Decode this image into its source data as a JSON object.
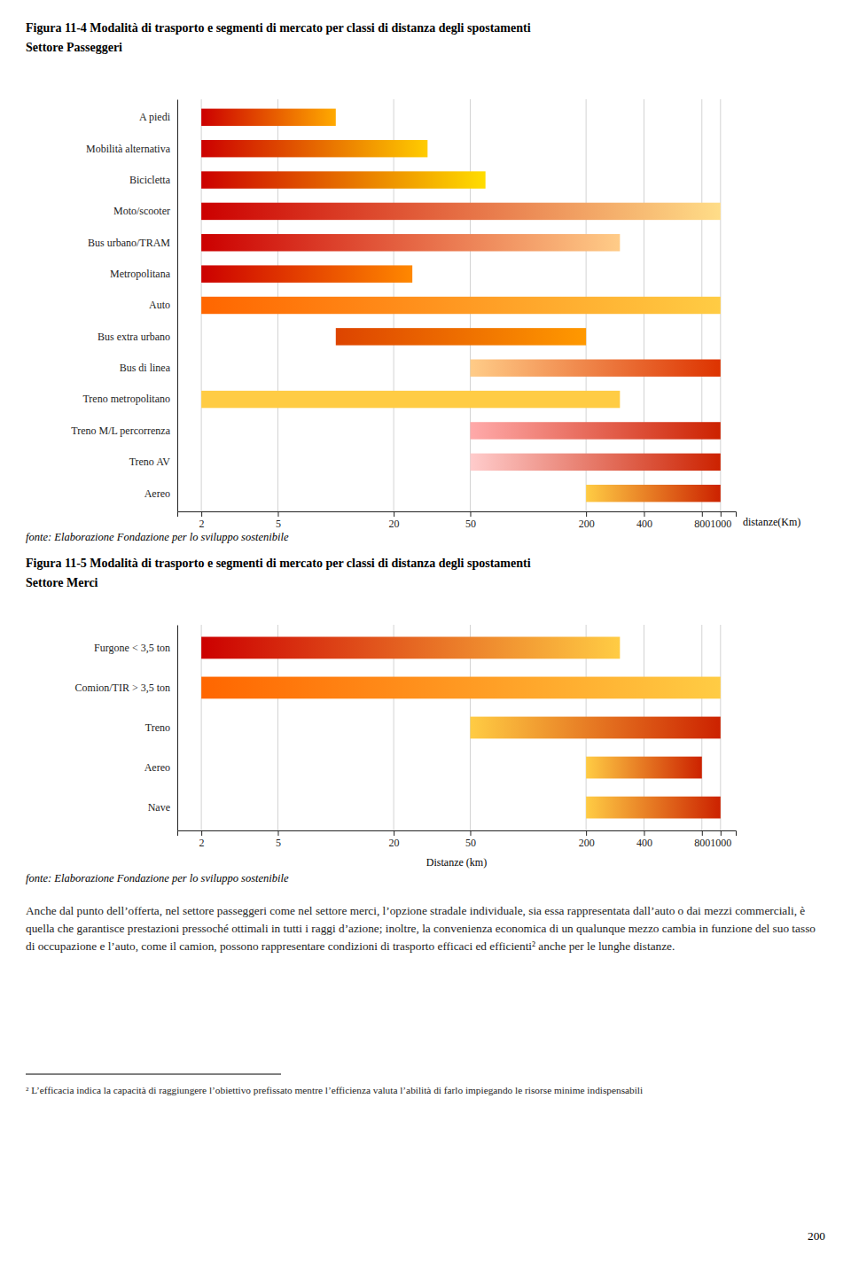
{
  "chart_data": [
    {
      "type": "bar",
      "orientation": "horizontal",
      "log": "x",
      "grid": true,
      "title": "Figura 11-4 Modalità di trasporto e segmenti di mercato per classi di distanza degli spostamenti",
      "subtitle": "Settore Passeggeri",
      "xlabel": "distanze(Km)",
      "categories": [
        "A piedi",
        "Mobilità alternativa",
        "Bicicletta",
        "Moto/scooter",
        "Bus urbano/TRAM",
        "Metropolitana",
        "Auto",
        "Bus extra urbano",
        "Bus di linea",
        "Treno metropolitano",
        "Treno M/L percorrenza",
        "Treno AV",
        "Aereo"
      ],
      "starts": [
        2,
        2,
        2,
        2,
        2,
        2,
        2,
        10,
        50,
        2,
        50,
        50,
        200
      ],
      "values": [
        10,
        30,
        60,
        1000,
        300,
        25,
        1000,
        200,
        1000,
        300,
        1000,
        1000,
        1000
      ],
      "colors": [
        [
          "#cc0000",
          "#ffaa00"
        ],
        [
          "#cc0000",
          "#ffcc00"
        ],
        [
          "#cc0000",
          "#ffdd00"
        ],
        [
          "#cc0000",
          "#ffdd88"
        ],
        [
          "#cc0000",
          "#ffcc88"
        ],
        [
          "#cc0000",
          "#ff8800"
        ],
        [
          "#ff6600",
          "#ffcc44"
        ],
        [
          "#dd4400",
          "#ff9900"
        ],
        [
          "#ffcc88",
          "#dd3300"
        ],
        [
          "#ffcc44",
          "#ffcc44"
        ],
        [
          "#ffaaaa",
          "#cc2200"
        ],
        [
          "#ffcccc",
          "#cc2200"
        ],
        [
          "#ffcc44",
          "#cc2200"
        ]
      ],
      "xlim": [
        1.5,
        1200
      ],
      "xticks": [
        2,
        5,
        20,
        50,
        200,
        400,
        800,
        1000
      ],
      "annotations": [
        "fonte: Elaborazione Fondazione per lo sviluppo sostenibile"
      ]
    },
    {
      "type": "bar",
      "orientation": "horizontal",
      "log": "x",
      "grid": true,
      "title": "Figura 11-5 Modalità di trasporto e segmenti di mercato per classi di distanza degli spostamenti",
      "subtitle": "Settore Merci",
      "xlabel": "Distanze (km)",
      "categories": [
        "Furgone < 3,5 ton",
        "Comion/TIR > 3,5 ton",
        "Treno",
        "Aereo",
        "Nave"
      ],
      "starts": [
        2,
        2,
        50,
        200,
        200
      ],
      "values": [
        300,
        1000,
        1000,
        800,
        1000
      ],
      "colors": [
        [
          "#cc0000",
          "#ffcc44"
        ],
        [
          "#ff6600",
          "#ffcc44"
        ],
        [
          "#ffcc44",
          "#cc2200"
        ],
        [
          "#ffcc44",
          "#cc2200"
        ],
        [
          "#ffcc44",
          "#cc2200"
        ]
      ],
      "xlim": [
        1.5,
        1200
      ],
      "xticks": [
        2,
        5,
        20,
        50,
        200,
        400,
        800,
        1000
      ],
      "annotations": [
        "fonte: Elaborazione Fondazione per lo sviluppo sostenibile",
        "Anche dal punto dell’offerta, nel settore passeggeri come nel settore merci, l’opzione stradale individuale, sia essa rappresentata dall’auto o dai mezzi commerciali, è quella che garantisce prestazioni pressoché ottimali in tutti i raggi d’azione; inoltre, la convenienza economica di un qualunque mezzo cambia in funzione del suo tasso di occupazione e l’auto, come il camion, possono rappresentare condizioni di trasporto efficaci ed efficienti² anche per le lunghe distanze.",
        "²  L’efficacia indica la capacità di raggiungere l’obiettivo prefissato mentre l’efficienza valuta l’abilità di farlo impiegando le risorse minime indispensabili",
        "200"
      ]
    }
  ]
}
